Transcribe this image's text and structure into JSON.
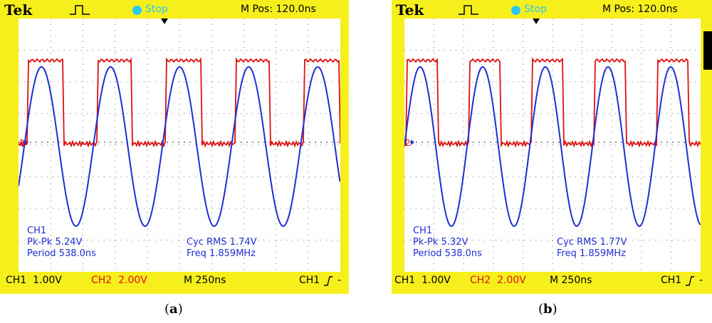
{
  "panels": [
    {
      "id": "a",
      "header": {
        "brand": "Tek",
        "status": "Stop",
        "mpos": "M Pos: 120.0ns"
      },
      "measure": {
        "channel": "CH1",
        "pkpk": "Pk-Pk 5.24V",
        "period": "Period 538.0ns",
        "rms": "Cyc RMS 1.74V",
        "freq": "Freq 1.859MHz"
      },
      "footer": {
        "ch1": "CH1  1.00V",
        "ch2": "CH2  2.00V",
        "time": "M 250ns",
        "trig": "CH1",
        "trig_level": "-"
      },
      "caption": {
        "open": "(",
        "letter": "a",
        "close": ")"
      }
    },
    {
      "id": "b",
      "header": {
        "brand": "Tek",
        "status": "Stop",
        "mpos": "M Pos: 120.0ns"
      },
      "measure": {
        "channel": "CH1",
        "pkpk": "Pk-Pk 5.32V",
        "period": "Period 538.0ns",
        "rms": "Cyc RMS 1.77V",
        "freq": "Freq 1.859MHz"
      },
      "footer": {
        "ch1": "CH1  1.00V",
        "ch2": "CH2  2.00V",
        "time": "M 250ns",
        "trig": "CH1",
        "trig_level": "-"
      },
      "caption": {
        "open": "(",
        "letter": "b",
        "close": ")"
      }
    }
  ],
  "colors": {
    "scope_bezel": "#f6ef1c",
    "ch1_trace": "#1f2fd0",
    "ch2_trace": "#e01010",
    "status_indicator": "#2ac8f0"
  },
  "icons": [
    "pulse-trigger-icon",
    "stop-indicator-icon",
    "trigger-position-marker-icon",
    "ground-marker-icon",
    "rising-edge-icon"
  ]
}
